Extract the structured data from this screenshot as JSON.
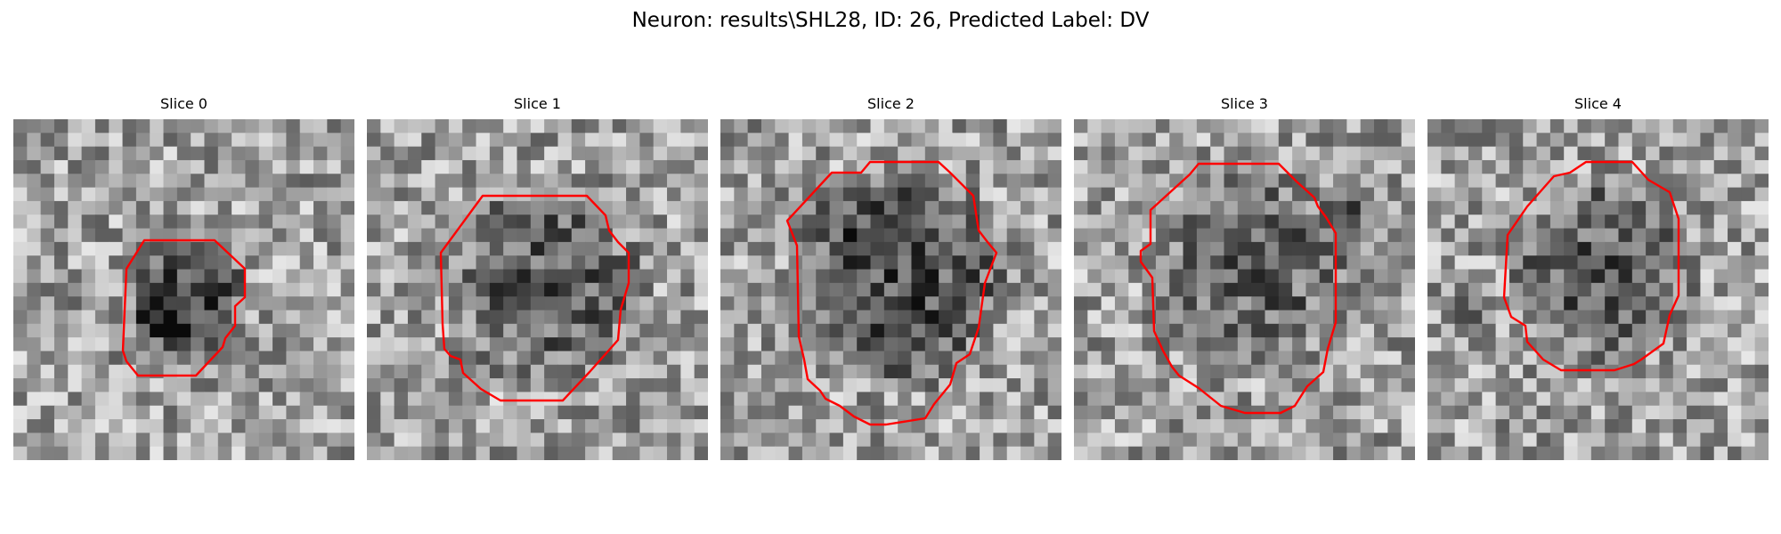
{
  "figure": {
    "title": "Neuron: results\\SHL28, ID: 26, Predicted Label: DV",
    "contour_color": "#ff0000",
    "colormap": "grayscale"
  },
  "slices": [
    {
      "title": "Slice 0"
    },
    {
      "title": "Slice 1"
    },
    {
      "title": "Slice 2"
    },
    {
      "title": "Slice 3"
    },
    {
      "title": "Slice 4"
    }
  ]
}
